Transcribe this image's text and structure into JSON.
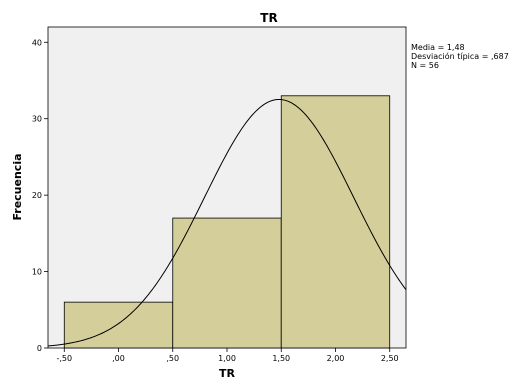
{
  "chart_data": {
    "type": "bar",
    "title": "TR",
    "xlabel": "TR",
    "ylabel": "Frecuencia",
    "bins": [
      {
        "from": -0.5,
        "to": 0.5,
        "count": 6
      },
      {
        "from": 0.5,
        "to": 1.5,
        "count": 17
      },
      {
        "from": 1.5,
        "to": 2.5,
        "count": 33
      }
    ],
    "xlim": [
      -0.65,
      2.65
    ],
    "ylim": [
      0,
      42
    ],
    "x_ticks": [
      {
        "value": -0.5,
        "label": "-,50"
      },
      {
        "value": 0,
        "label": ",00"
      },
      {
        "value": 0.5,
        "label": ",50"
      },
      {
        "value": 1,
        "label": "1,00"
      },
      {
        "value": 1.5,
        "label": "1,50"
      },
      {
        "value": 2,
        "label": "2,00"
      },
      {
        "value": 2.5,
        "label": "2,50"
      }
    ],
    "y_ticks": [
      {
        "value": 0,
        "label": "0"
      },
      {
        "value": 10,
        "label": "10"
      },
      {
        "value": 20,
        "label": "20"
      },
      {
        "value": 30,
        "label": "30"
      },
      {
        "value": 40,
        "label": "40"
      }
    ],
    "normal_curve": {
      "mean": 1.48,
      "sd": 0.687,
      "n": 56,
      "bin_width": 1
    },
    "stats_lines": [
      "Media = 1,48",
      "Desviación típica = ,687",
      "N = 56"
    ],
    "grid": false,
    "legend": "none",
    "colors": {
      "plot_bg": "#f0f0f0",
      "bar_fill": "#d3ce9a",
      "bar_stroke": "#000000",
      "curve": "#000000"
    }
  }
}
